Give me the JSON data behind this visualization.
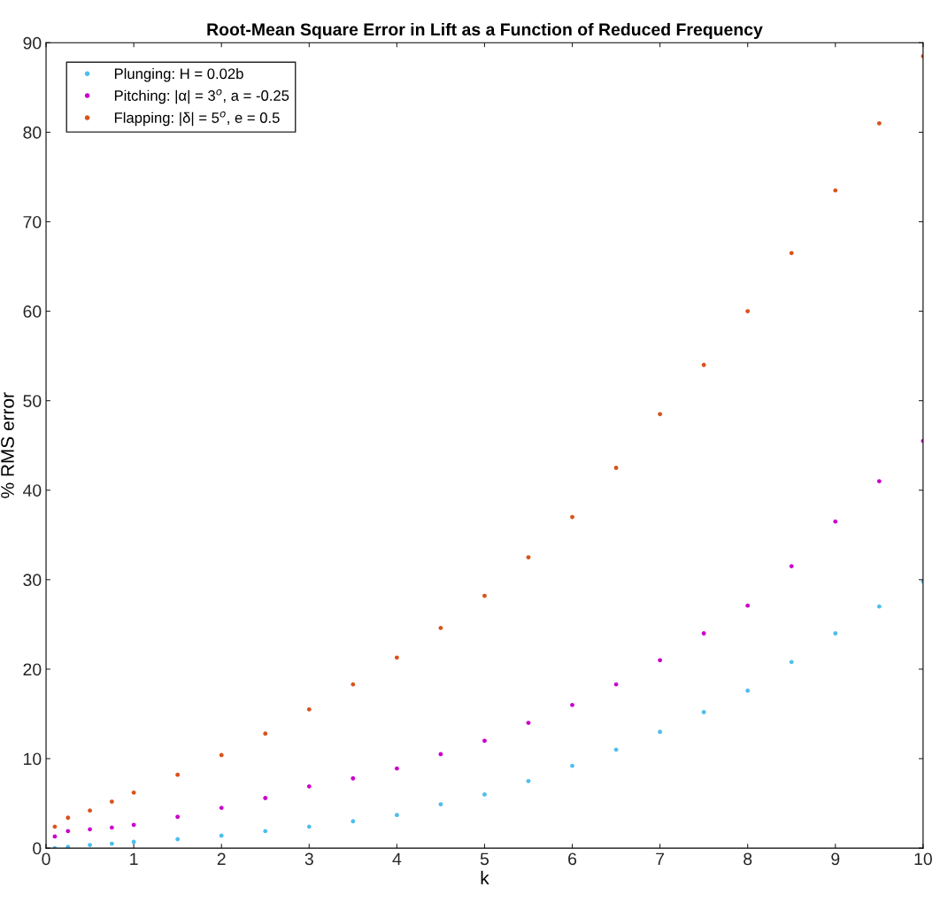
{
  "chart_data": {
    "type": "scatter",
    "title": "Root-Mean Square Error in Lift as a Function of Reduced Frequency",
    "xlabel": "k",
    "ylabel": "% RMS error",
    "x": [
      0.1,
      0.25,
      0.5,
      0.75,
      1,
      1.5,
      2,
      2.5,
      3,
      3.5,
      4,
      4.5,
      5,
      5.5,
      6,
      6.5,
      7,
      7.5,
      8,
      8.5,
      9,
      9.5,
      10
    ],
    "series": [
      {
        "name": "Plunging: H = 0.02b",
        "color": "#4dbeee",
        "values": [
          0,
          0.15,
          0.35,
          0.5,
          0.7,
          1.0,
          1.4,
          1.9,
          2.4,
          3,
          3.7,
          4.9,
          6,
          7.5,
          9.2,
          11,
          13,
          15.2,
          17.6,
          20.8,
          24,
          27,
          29.8
        ]
      },
      {
        "name": "Pitching: |α| = 3$^{o}$, a = -0.25",
        "color": "#cc00cc",
        "values": [
          1.3,
          1.9,
          2.1,
          2.3,
          2.6,
          3.5,
          4.5,
          5.6,
          6.9,
          7.8,
          8.9,
          10.5,
          12,
          14,
          16,
          18.3,
          21,
          24,
          27.1,
          31.5,
          36.5,
          41,
          45.5
        ]
      },
      {
        "name": "Flapping: |δ| = 5$^{o}$, e = 0.5",
        "color": "#d95319",
        "values": [
          2.4,
          3.4,
          4.2,
          5.2,
          6.2,
          8.2,
          10.4,
          12.8,
          15.5,
          18.3,
          21.3,
          24.6,
          28.2,
          32.5,
          37,
          42.5,
          48.5,
          54,
          60,
          66.5,
          73.5,
          81,
          88.5
        ]
      }
    ],
    "xlim": [
      0,
      10
    ],
    "ylim": [
      0,
      90
    ],
    "xticks": [
      0,
      1,
      2,
      3,
      4,
      5,
      6,
      7,
      8,
      9,
      10
    ],
    "yticks": [
      0,
      10,
      20,
      30,
      40,
      50,
      60,
      70,
      80,
      90
    ],
    "marker": "circle",
    "grid": false,
    "legend": "top left"
  }
}
